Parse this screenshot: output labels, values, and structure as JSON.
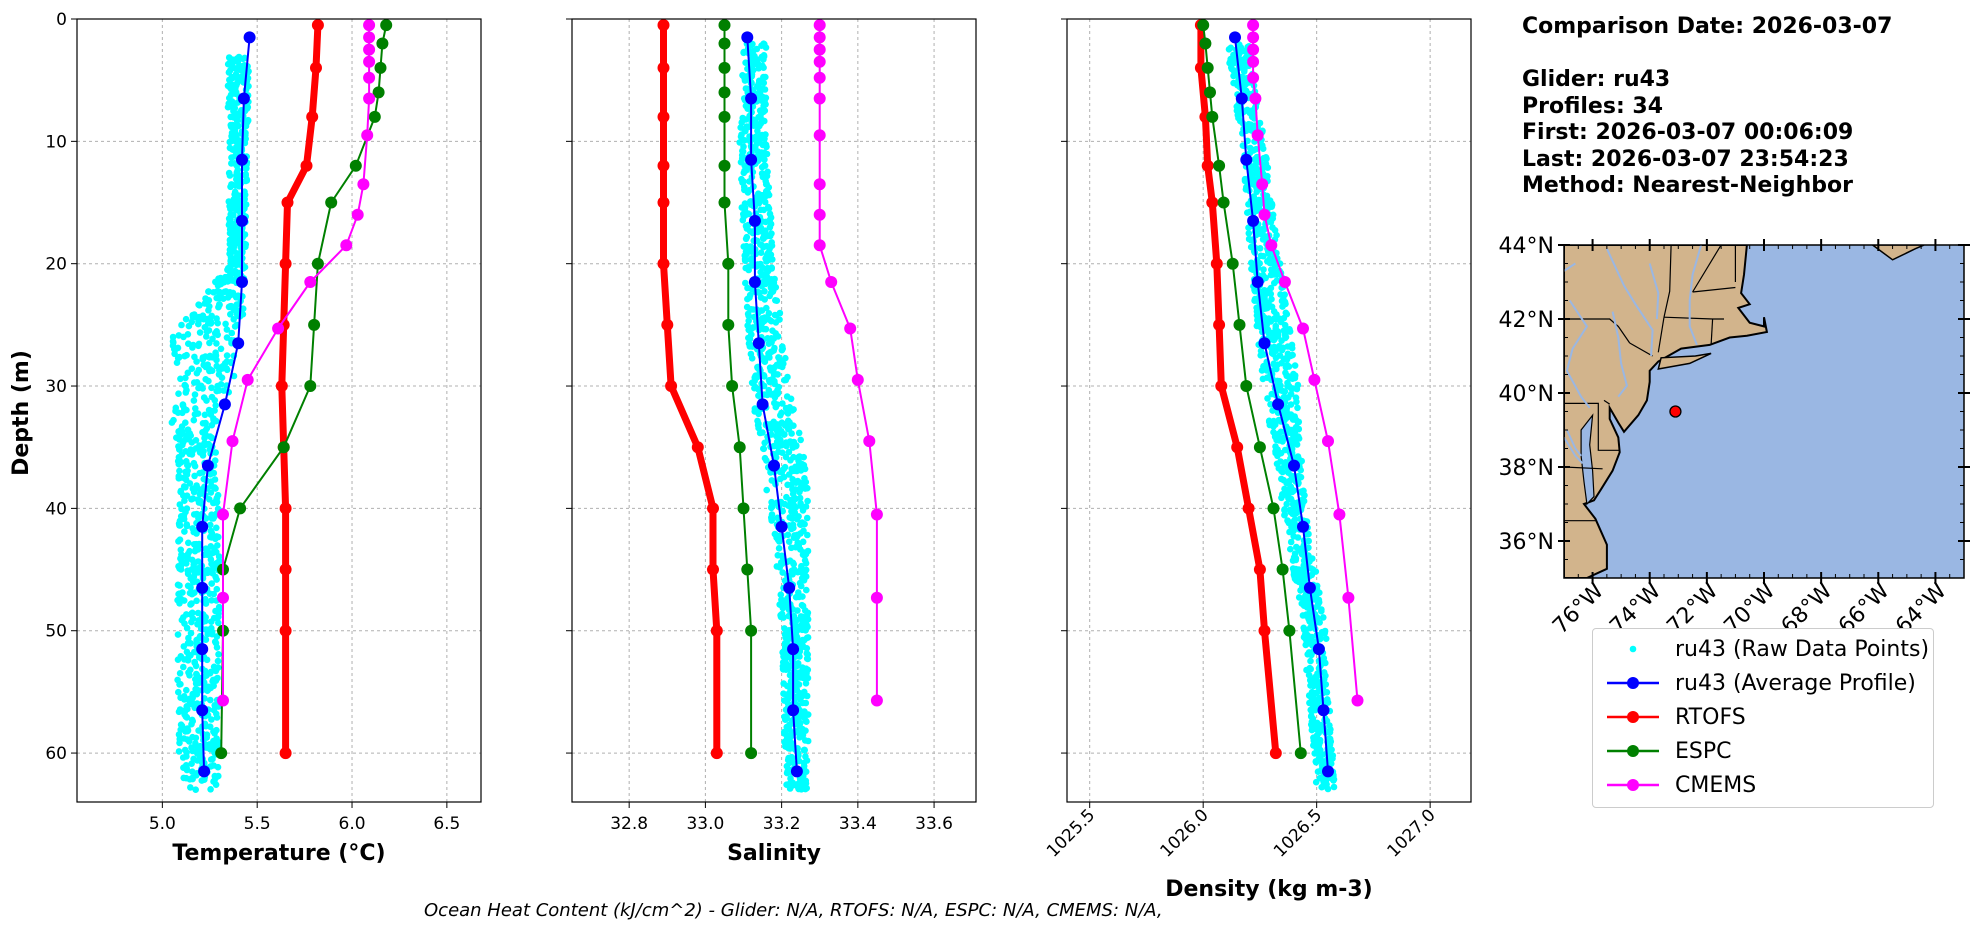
{
  "info": {
    "comparison": "Comparison Date: 2026-03-07",
    "glider": "Glider: ru43",
    "profiles": "Profiles: 34",
    "first": "First: 2026-03-07 00:06:09",
    "last": "Last: 2026-03-07 23:54:23",
    "method": "Method: Nearest-Neighbor"
  },
  "footer": "Ocean Heat Content (kJ/cm^2) - Glider: N/A,  RTOFS: N/A,  ESPC: N/A,  CMEMS: N/A,",
  "colors": {
    "raw": "#00ffff",
    "avg": "#0000ff",
    "rtofs": "#ff0000",
    "espc": "#008000",
    "cmems": "#ff00ff",
    "land": "#d2b48c",
    "ocean": "#9ab7e3",
    "grid": "#b0b0b0"
  },
  "legend": [
    {
      "label": "ru43 (Raw Data Points)",
      "key": "raw",
      "style": "dots"
    },
    {
      "label": "ru43 (Average Profile)",
      "key": "avg",
      "style": "line-marker"
    },
    {
      "label": "RTOFS",
      "key": "rtofs",
      "style": "line-marker"
    },
    {
      "label": "ESPC",
      "key": "espc",
      "style": "line-marker"
    },
    {
      "label": "CMEMS",
      "key": "cmems",
      "style": "line-marker"
    }
  ],
  "map": {
    "lat_ticks": [
      "44°N",
      "42°N",
      "40°N",
      "38°N",
      "36°N"
    ],
    "lon_ticks": [
      "76°W",
      "74°W",
      "72°W",
      "70°W",
      "68°W",
      "66°W",
      "64°W"
    ],
    "lat_range": [
      35.0,
      44.0
    ],
    "lon_range": [
      -77.0,
      -63.0
    ],
    "glider_position": {
      "lon": -73.1,
      "lat": 39.5
    }
  },
  "chart_data": [
    {
      "type": "line",
      "xlabel": "Temperature (°C)",
      "ylabel": "Depth (m)",
      "xlim": [
        4.55,
        6.68
      ],
      "ylim": [
        64,
        0
      ],
      "xticks": [
        5.0,
        5.5,
        6.0,
        6.5
      ],
      "xtick_labels": [
        "5.0",
        "5.5",
        "6.0",
        "6.5"
      ],
      "yticks": [
        0,
        10,
        20,
        30,
        40,
        50,
        60
      ],
      "ytick_labels": [
        "0",
        "10",
        "20",
        "30",
        "40",
        "50",
        "60"
      ],
      "grid": true,
      "raw_envelope": [
        [
          3,
          5.34,
          5.46
        ],
        [
          10,
          5.35,
          5.45
        ],
        [
          20,
          5.35,
          5.44
        ],
        [
          26,
          5.05,
          5.42
        ],
        [
          30,
          5.08,
          5.38
        ],
        [
          33,
          5.05,
          5.3
        ],
        [
          36,
          5.08,
          5.28
        ],
        [
          40,
          5.08,
          5.3
        ],
        [
          50,
          5.08,
          5.3
        ],
        [
          63,
          5.08,
          5.3
        ]
      ],
      "series": [
        {
          "name": "ru43 (Average Profile)",
          "x": [
            5.46,
            5.43,
            5.42,
            5.42,
            5.42,
            5.4,
            5.33,
            5.24,
            5.21,
            5.21,
            5.21,
            5.21,
            5.22
          ],
          "depth": [
            1.5,
            6.5,
            11.5,
            16.5,
            21.5,
            26.5,
            31.5,
            36.5,
            41.5,
            46.5,
            51.5,
            56.5,
            61.5
          ]
        },
        {
          "name": "RTOFS",
          "x": [
            5.82,
            5.81,
            5.79,
            5.76,
            5.66,
            5.65,
            5.64,
            5.63,
            5.64,
            5.65,
            5.65,
            5.65,
            5.65
          ],
          "depth": [
            0.5,
            4,
            8,
            12,
            15,
            20,
            25,
            30,
            35,
            40,
            45,
            50,
            60
          ]
        },
        {
          "name": "ESPC",
          "x": [
            6.18,
            6.16,
            6.15,
            6.14,
            6.12,
            6.02,
            5.89,
            5.82,
            5.8,
            5.78,
            5.64,
            5.41,
            5.32,
            5.32,
            5.31
          ],
          "depth": [
            0.5,
            2,
            4,
            6,
            8,
            12,
            15,
            20,
            25,
            30,
            35,
            40,
            45,
            50,
            60
          ]
        },
        {
          "name": "CMEMS",
          "x": [
            6.09,
            6.09,
            6.09,
            6.09,
            6.09,
            6.09,
            6.08,
            6.06,
            6.03,
            5.97,
            5.78,
            5.61,
            5.45,
            5.37,
            5.32,
            5.32,
            5.32
          ],
          "depth": [
            0.5,
            1.5,
            2.5,
            3.5,
            4.8,
            6.5,
            9.5,
            13.5,
            16,
            18.5,
            21.5,
            25.3,
            29.5,
            34.5,
            40.5,
            47.3,
            55.7
          ]
        }
      ]
    },
    {
      "type": "line",
      "xlabel": "Salinity",
      "xlim": [
        32.65,
        33.71
      ],
      "ylim": [
        64,
        0
      ],
      "xticks": [
        32.8,
        33.0,
        33.2,
        33.4,
        33.6
      ],
      "xtick_labels": [
        "32.8",
        "33.0",
        "33.2",
        "33.4",
        "33.6"
      ],
      "yticks": [
        0,
        10,
        20,
        30,
        40,
        50,
        60
      ],
      "grid": true,
      "raw_envelope": [
        [
          2,
          33.1,
          33.16
        ],
        [
          10,
          33.09,
          33.16
        ],
        [
          20,
          33.1,
          33.18
        ],
        [
          30,
          33.12,
          33.22
        ],
        [
          37,
          33.15,
          33.27
        ],
        [
          42,
          33.18,
          33.27
        ],
        [
          50,
          33.2,
          33.27
        ],
        [
          63,
          33.21,
          33.27
        ]
      ],
      "series": [
        {
          "name": "ru43 (Average Profile)",
          "x": [
            33.11,
            33.12,
            33.12,
            33.13,
            33.13,
            33.14,
            33.15,
            33.18,
            33.2,
            33.22,
            33.23,
            33.23,
            33.24
          ],
          "depth": [
            1.5,
            6.5,
            11.5,
            16.5,
            21.5,
            26.5,
            31.5,
            36.5,
            41.5,
            46.5,
            51.5,
            56.5,
            61.5
          ]
        },
        {
          "name": "RTOFS",
          "x": [
            32.89,
            32.89,
            32.89,
            32.89,
            32.89,
            32.89,
            32.9,
            32.91,
            32.98,
            33.02,
            33.02,
            33.03,
            33.03
          ],
          "depth": [
            0.5,
            4,
            8,
            12,
            15,
            20,
            25,
            30,
            35,
            40,
            45,
            50,
            60
          ]
        },
        {
          "name": "ESPC",
          "x": [
            33.05,
            33.05,
            33.05,
            33.05,
            33.05,
            33.05,
            33.05,
            33.06,
            33.06,
            33.07,
            33.09,
            33.1,
            33.11,
            33.12,
            33.12
          ],
          "depth": [
            0.5,
            2,
            4,
            6,
            8,
            12,
            15,
            20,
            25,
            30,
            35,
            40,
            45,
            50,
            60
          ]
        },
        {
          "name": "CMEMS",
          "x": [
            33.3,
            33.3,
            33.3,
            33.3,
            33.3,
            33.3,
            33.3,
            33.3,
            33.3,
            33.3,
            33.33,
            33.38,
            33.4,
            33.43,
            33.45,
            33.45,
            33.45
          ],
          "depth": [
            0.5,
            1.5,
            2.5,
            3.5,
            4.8,
            6.5,
            9.5,
            13.5,
            16,
            18.5,
            21.5,
            25.3,
            29.5,
            34.5,
            40.5,
            47.3,
            55.7
          ]
        }
      ]
    },
    {
      "type": "line",
      "xlabel": "Density (kg m-3)",
      "xlim": [
        1025.4,
        1027.18
      ],
      "ylim": [
        64,
        0
      ],
      "xticks": [
        1025.5,
        1026.0,
        1026.5,
        1027.0
      ],
      "xtick_labels": [
        "1025.5",
        "1026.0",
        "1026.5",
        "1027.0"
      ],
      "yticks": [
        0,
        10,
        20,
        30,
        40,
        50,
        60
      ],
      "grid": true,
      "raw_envelope": [
        [
          2,
          1026.1,
          1026.2
        ],
        [
          10,
          1026.17,
          1026.27
        ],
        [
          20,
          1026.21,
          1026.34
        ],
        [
          30,
          1026.26,
          1026.42
        ],
        [
          40,
          1026.35,
          1026.45
        ],
        [
          50,
          1026.44,
          1026.54
        ],
        [
          63,
          1026.5,
          1026.58
        ]
      ],
      "series": [
        {
          "name": "ru43 (Average Profile)",
          "x": [
            1026.14,
            1026.17,
            1026.19,
            1026.22,
            1026.24,
            1026.27,
            1026.33,
            1026.4,
            1026.44,
            1026.47,
            1026.51,
            1026.53,
            1026.55
          ],
          "depth": [
            1.5,
            6.5,
            11.5,
            16.5,
            21.5,
            26.5,
            31.5,
            36.5,
            41.5,
            46.5,
            51.5,
            56.5,
            61.5
          ]
        },
        {
          "name": "RTOFS",
          "x": [
            1025.99,
            1025.99,
            1026.01,
            1026.02,
            1026.04,
            1026.06,
            1026.07,
            1026.08,
            1026.15,
            1026.2,
            1026.25,
            1026.27,
            1026.32
          ],
          "depth": [
            0.5,
            4,
            8,
            12,
            15,
            20,
            25,
            30,
            35,
            40,
            45,
            50,
            60
          ]
        },
        {
          "name": "ESPC",
          "x": [
            1026.0,
            1026.01,
            1026.02,
            1026.03,
            1026.04,
            1026.07,
            1026.09,
            1026.13,
            1026.16,
            1026.19,
            1026.25,
            1026.31,
            1026.35,
            1026.38,
            1026.43
          ],
          "depth": [
            0.5,
            2,
            4,
            6,
            8,
            12,
            15,
            20,
            25,
            30,
            35,
            40,
            45,
            50,
            60
          ]
        },
        {
          "name": "CMEMS",
          "x": [
            1026.22,
            1026.22,
            1026.22,
            1026.22,
            1026.22,
            1026.23,
            1026.24,
            1026.26,
            1026.27,
            1026.3,
            1026.36,
            1026.44,
            1026.49,
            1026.55,
            1026.6,
            1026.64,
            1026.68
          ],
          "depth": [
            0.5,
            1.5,
            2.5,
            3.5,
            4.8,
            6.5,
            9.5,
            13.5,
            16,
            18.5,
            21.5,
            25.3,
            29.5,
            34.5,
            40.5,
            47.3,
            55.7
          ]
        }
      ]
    }
  ]
}
